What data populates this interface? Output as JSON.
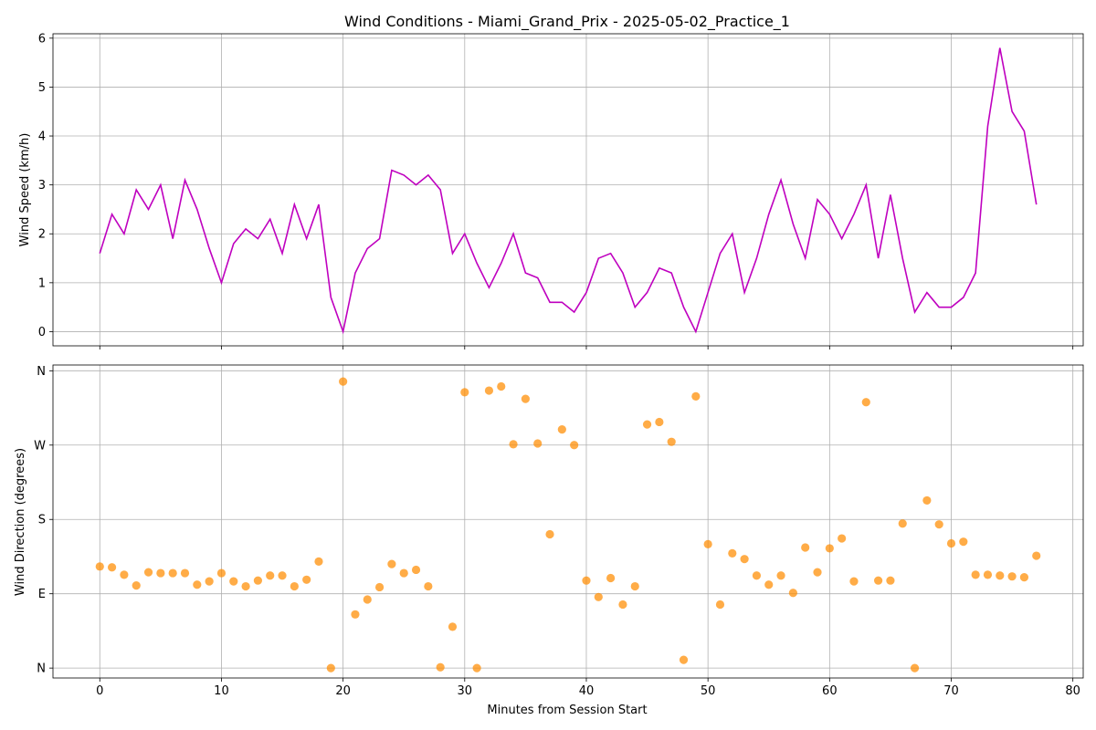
{
  "chart_data": [
    {
      "type": "line",
      "title": "Wind Conditions - Miami_Grand_Prix - 2025-05-02_Practice_1",
      "xlabel": "",
      "ylabel": "Wind Speed (km/h)",
      "xlim": [
        -3.85,
        80.85
      ],
      "ylim": [
        -0.29,
        6.09
      ],
      "x_ticks": [
        0,
        10,
        20,
        30,
        40,
        50,
        60,
        70,
        80
      ],
      "x_tick_labels_visible": false,
      "y_ticks": [
        0,
        1,
        2,
        3,
        4,
        5,
        6
      ],
      "y_tick_labels": [
        "0",
        "1",
        "2",
        "3",
        "4",
        "5",
        "6"
      ],
      "grid": true,
      "color": "#bf00bf",
      "x": [
        0,
        1,
        2,
        3,
        4,
        5,
        6,
        7,
        8,
        9,
        10,
        11,
        12,
        13,
        14,
        15,
        16,
        17,
        18,
        19,
        20,
        21,
        22,
        23,
        24,
        25,
        26,
        27,
        28,
        29,
        30,
        31,
        32,
        33,
        34,
        35,
        36,
        37,
        38,
        39,
        40,
        41,
        42,
        43,
        44,
        45,
        46,
        47,
        48,
        49,
        50,
        51,
        52,
        53,
        54,
        55,
        56,
        57,
        58,
        59,
        60,
        61,
        62,
        63,
        64,
        65,
        66,
        67,
        68,
        69,
        70,
        71,
        72,
        73,
        74,
        75,
        76,
        77
      ],
      "y": [
        1.6,
        2.4,
        2.0,
        2.9,
        2.5,
        3.0,
        1.9,
        3.1,
        2.5,
        1.7,
        1.0,
        1.8,
        2.1,
        1.9,
        2.3,
        1.6,
        2.6,
        1.9,
        2.6,
        0.7,
        0.0,
        1.2,
        1.7,
        1.9,
        3.3,
        3.2,
        3.0,
        3.2,
        2.9,
        1.6,
        2.0,
        1.4,
        0.9,
        1.4,
        2.0,
        1.2,
        1.1,
        0.6,
        0.6,
        0.4,
        0.8,
        1.5,
        1.6,
        1.2,
        0.5,
        0.8,
        1.3,
        1.2,
        0.5,
        0.0,
        0.8,
        1.6,
        2.0,
        0.8,
        1.5,
        2.4,
        3.1,
        2.2,
        1.5,
        2.7,
        2.4,
        1.9,
        2.4,
        3.0,
        1.5,
        2.8,
        1.5,
        0.4,
        0.8,
        0.5,
        0.5,
        0.7,
        1.2,
        4.2,
        5.8,
        4.5,
        4.1,
        2.6
      ]
    },
    {
      "type": "scatter",
      "title": "",
      "xlabel": "Minutes from Session Start",
      "ylabel": "Wind Direction (degrees)",
      "xlim": [
        -3.85,
        80.85
      ],
      "ylim": [
        -12,
        367
      ],
      "x_ticks": [
        0,
        10,
        20,
        30,
        40,
        50,
        60,
        70,
        80
      ],
      "x_tick_labels": [
        "0",
        "10",
        "20",
        "30",
        "40",
        "50",
        "60",
        "70",
        "80"
      ],
      "y_ticks": [
        0,
        90,
        180,
        270,
        360
      ],
      "y_tick_labels": [
        "N",
        "E",
        "S",
        "W",
        "N"
      ],
      "grid": true,
      "color": "#ff8c00",
      "x": [
        0,
        1,
        2,
        3,
        4,
        5,
        6,
        7,
        8,
        9,
        10,
        11,
        12,
        13,
        14,
        15,
        16,
        17,
        18,
        19,
        20,
        21,
        22,
        23,
        24,
        25,
        26,
        27,
        28,
        29,
        30,
        31,
        32,
        33,
        34,
        35,
        36,
        37,
        38,
        39,
        40,
        41,
        42,
        43,
        44,
        45,
        46,
        47,
        48,
        49,
        50,
        51,
        52,
        53,
        54,
        55,
        56,
        57,
        58,
        59,
        60,
        61,
        62,
        63,
        64,
        65,
        66,
        67,
        68,
        69,
        70,
        71,
        72,
        73,
        74,
        75,
        76,
        77
      ],
      "y": [
        123,
        122,
        113,
        100,
        116,
        115,
        115,
        115,
        101,
        105,
        115,
        105,
        99,
        106,
        112,
        112,
        99,
        107,
        129,
        0,
        347,
        65,
        83,
        98,
        126,
        115,
        119,
        99,
        1,
        50,
        334,
        0,
        336,
        341,
        271,
        326,
        272,
        162,
        289,
        270,
        106,
        86,
        109,
        77,
        99,
        295,
        298,
        274,
        10,
        329,
        150,
        77,
        139,
        132,
        112,
        101,
        112,
        91,
        146,
        116,
        145,
        157,
        105,
        322,
        106,
        106,
        175,
        0,
        203,
        174,
        151,
        153,
        113,
        113,
        112,
        111,
        110,
        136
      ]
    }
  ]
}
